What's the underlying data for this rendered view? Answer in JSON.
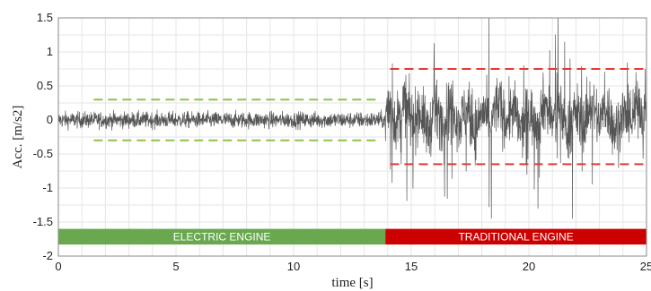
{
  "chart_data": {
    "type": "line",
    "xlabel": "time [s]",
    "ylabel": "Acc. [m/s2]",
    "xlim": [
      0,
      25
    ],
    "ylim": [
      -2,
      1.5
    ],
    "xticks": [
      0,
      5,
      10,
      15,
      20,
      25
    ],
    "xtick_labels": [
      "0",
      "5",
      "10",
      "15",
      "20",
      "25"
    ],
    "yticks": [
      -2,
      -1.5,
      -1,
      -0.5,
      0,
      0.5,
      1,
      1.5
    ],
    "ytick_labels": [
      "-2",
      "-1.5",
      "-1",
      "-0.5",
      "0",
      "0.5",
      "1",
      "1.5"
    ],
    "grid": true,
    "series": [
      {
        "color": "#555555",
        "segments": [
          {
            "x_range": [
              0,
              13.9
            ],
            "mean": 0.0,
            "amplitude": 0.28
          },
          {
            "x_range": [
              13.9,
              25
            ],
            "mean": 0.05,
            "amplitude_min": -1.45,
            "amplitude_max": 1.5
          }
        ]
      }
    ],
    "threshold_lines": [
      {
        "x_range": [
          1.5,
          13.5
        ],
        "y": 0.3,
        "color": "#8bc34a",
        "style": "dashed"
      },
      {
        "x_range": [
          1.5,
          13.5
        ],
        "y": -0.3,
        "color": "#8bc34a",
        "style": "dashed"
      },
      {
        "x_range": [
          14.1,
          24.9
        ],
        "y": 0.75,
        "color": "#e53935",
        "style": "dashed"
      },
      {
        "x_range": [
          14.1,
          24.9
        ],
        "y": -0.65,
        "color": "#e53935",
        "style": "dashed"
      }
    ],
    "bands": [
      {
        "label": "ELECTRIC ENGINE",
        "x_range": [
          0,
          13.9
        ],
        "y_range": [
          -1.83,
          -1.6
        ],
        "color": "#6aa84f"
      },
      {
        "label": "TRADITIONAL ENGINE",
        "x_range": [
          13.9,
          25
        ],
        "y_range": [
          -1.83,
          -1.6
        ],
        "color": "#cc0000"
      }
    ]
  }
}
